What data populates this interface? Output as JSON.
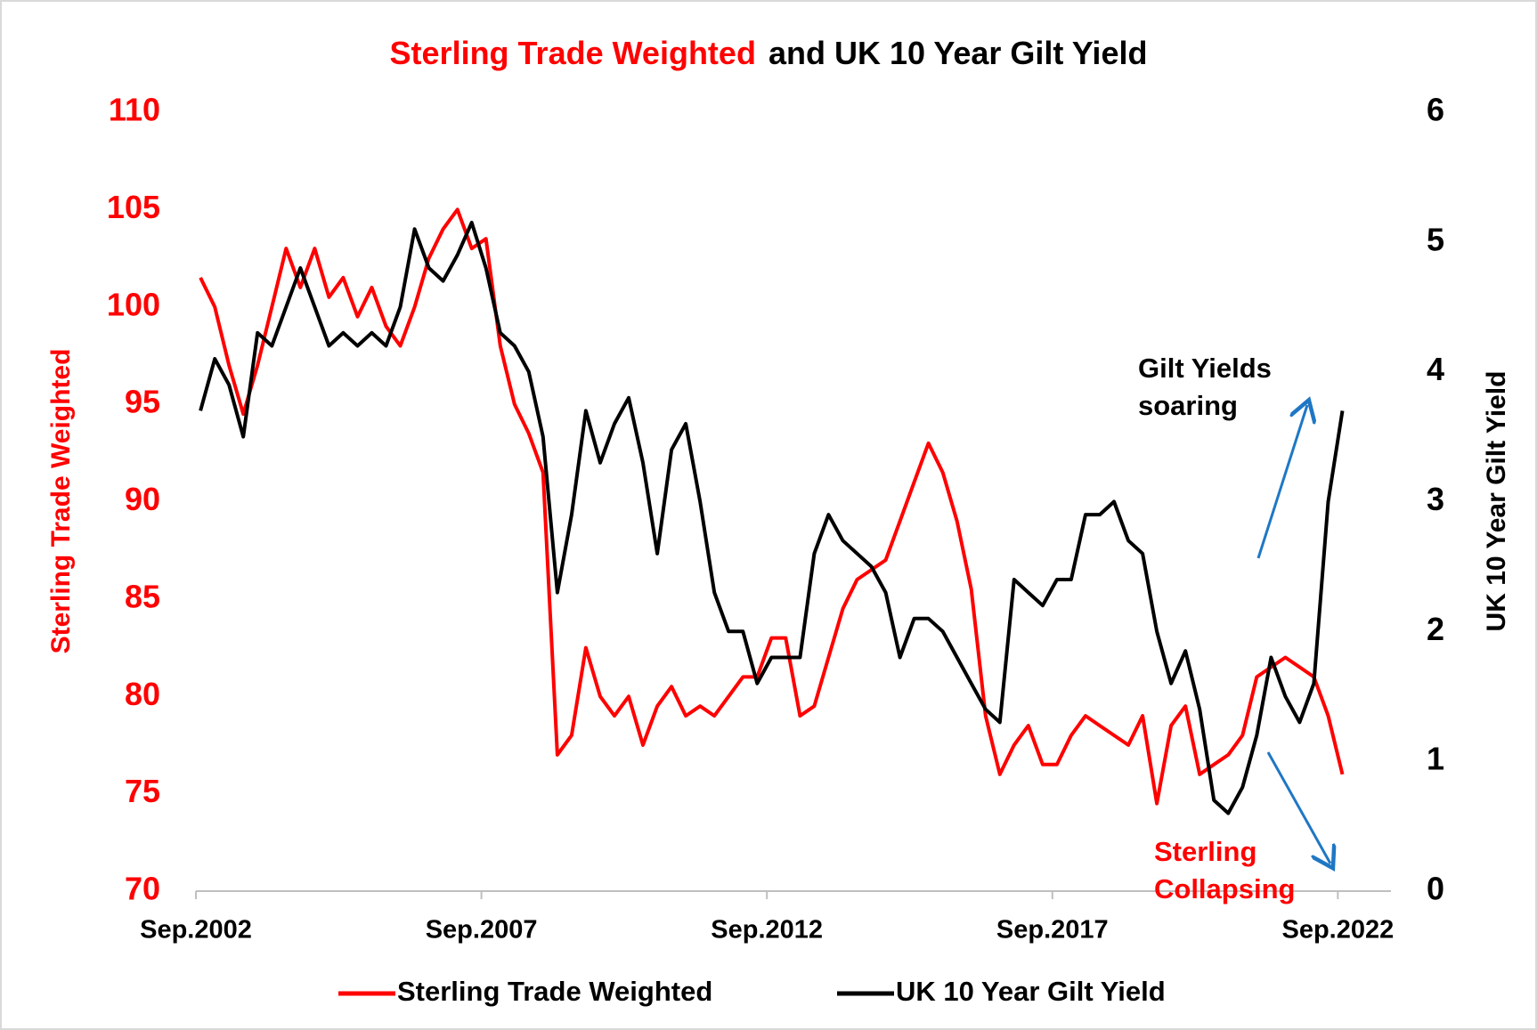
{
  "chart_data": {
    "type": "line",
    "title_parts": [
      {
        "text": "Sterling Trade Weighted",
        "color": "#ff0000"
      },
      {
        "text": "and UK 10 Year Gilt Yield",
        "color": "#000000"
      }
    ],
    "y_label": "Sterling Trade Weighted",
    "y2_label": "UK 10 Year Gilt Yield",
    "x": [
      2002.75,
      2003,
      2003.25,
      2003.5,
      2003.75,
      2004,
      2004.25,
      2004.5,
      2004.75,
      2005,
      2005.25,
      2005.5,
      2005.75,
      2006,
      2006.25,
      2006.5,
      2006.75,
      2007,
      2007.25,
      2007.5,
      2007.75,
      2008,
      2008.25,
      2008.5,
      2008.75,
      2009,
      2009.25,
      2009.5,
      2009.75,
      2010,
      2010.25,
      2010.5,
      2010.75,
      2011,
      2011.25,
      2011.5,
      2011.75,
      2012,
      2012.25,
      2012.5,
      2012.75,
      2013,
      2013.25,
      2013.5,
      2013.75,
      2014,
      2014.25,
      2014.5,
      2014.75,
      2015,
      2015.25,
      2015.5,
      2015.75,
      2016,
      2016.25,
      2016.5,
      2016.75,
      2017,
      2017.25,
      2017.5,
      2017.75,
      2018,
      2018.25,
      2018.5,
      2018.75,
      2019,
      2019.25,
      2019.5,
      2019.75,
      2020,
      2020.25,
      2020.5,
      2020.75,
      2021,
      2021.25,
      2021.5,
      2021.75,
      2022,
      2022.25,
      2022.5,
      2022.75
    ],
    "series": [
      {
        "name": "Sterling Trade Weighted",
        "color": "#ff0000",
        "axis": "y",
        "values": [
          101.5,
          100,
          97,
          94.5,
          97,
          100,
          103,
          101,
          103,
          100.5,
          101.5,
          99.5,
          101,
          99,
          98,
          100,
          102.5,
          104,
          105,
          103,
          103.5,
          98,
          95,
          93.5,
          91.5,
          77,
          78,
          82.5,
          80,
          79,
          80,
          77.5,
          79.5,
          80.5,
          79,
          79.5,
          79,
          80,
          81,
          81,
          83,
          83,
          79,
          79.5,
          82,
          84.5,
          86,
          86.5,
          87,
          89,
          91,
          93,
          91.5,
          89,
          85.5,
          79,
          76,
          77.5,
          78.5,
          76.5,
          76.5,
          78,
          79,
          78.5,
          78,
          77.5,
          79,
          74.5,
          78.5,
          79.5,
          76,
          76.5,
          77,
          78,
          81,
          81.5,
          82,
          81.5,
          81,
          79,
          76
        ]
      },
      {
        "name": "UK 10 Year Gilt Yield",
        "color": "#000000",
        "axis": "y2",
        "values": [
          3.7,
          4.1,
          3.9,
          3.5,
          4.3,
          4.2,
          4.5,
          4.8,
          4.5,
          4.2,
          4.3,
          4.2,
          4.3,
          4.2,
          4.5,
          5.1,
          4.8,
          4.7,
          4.9,
          5.15,
          4.8,
          4.3,
          4.2,
          4.0,
          3.5,
          2.3,
          2.9,
          3.7,
          3.3,
          3.6,
          3.8,
          3.3,
          2.6,
          3.4,
          3.6,
          3.0,
          2.3,
          2.0,
          2.0,
          1.6,
          1.8,
          1.8,
          1.8,
          2.6,
          2.9,
          2.7,
          2.6,
          2.5,
          2.3,
          1.8,
          2.1,
          2.1,
          2.0,
          1.8,
          1.6,
          1.4,
          1.3,
          2.4,
          2.3,
          2.2,
          2.4,
          2.4,
          2.9,
          2.9,
          3.0,
          2.7,
          2.6,
          2.0,
          1.6,
          1.85,
          1.4,
          0.7,
          0.6,
          0.8,
          1.2,
          1.8,
          1.5,
          1.3,
          1.6,
          3.0,
          3.7
        ]
      }
    ],
    "xlim": [
      2002.67,
      2023.6
    ],
    "xticks": [
      {
        "value": 2002.67,
        "label": "Sep.2002"
      },
      {
        "value": 2007.67,
        "label": "Sep.2007"
      },
      {
        "value": 2012.67,
        "label": "Sep.2012"
      },
      {
        "value": 2017.67,
        "label": "Sep.2017"
      },
      {
        "value": 2022.67,
        "label": "Sep.2022"
      }
    ],
    "ylim": [
      70,
      110
    ],
    "yticks": [
      70,
      75,
      80,
      85,
      90,
      95,
      100,
      105,
      110
    ],
    "y2lim": [
      0,
      6
    ],
    "y2ticks": [
      0,
      1,
      2,
      3,
      4,
      5,
      6
    ],
    "grid": false,
    "legend": "bottom",
    "annotations": [
      {
        "lines": [
          "Gilt Yields",
          "soaring"
        ],
        "color": "#000000"
      },
      {
        "lines": [
          "Sterling",
          "Collapsing"
        ],
        "color": "#ff0000"
      }
    ]
  }
}
